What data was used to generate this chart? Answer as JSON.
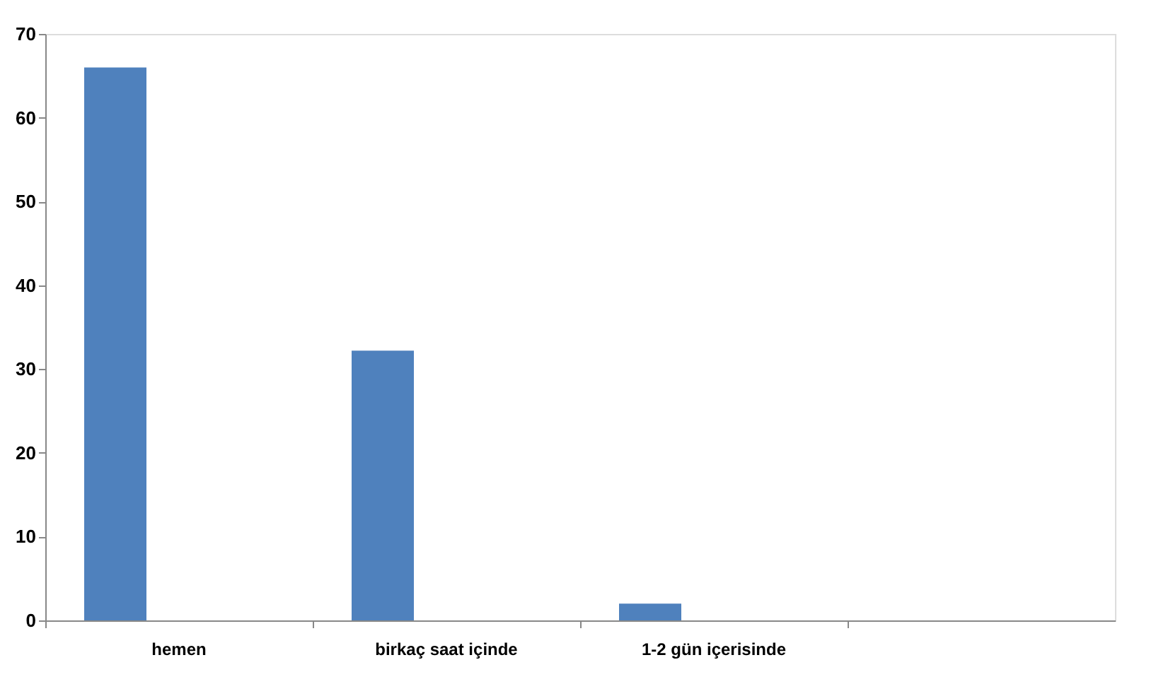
{
  "chart_data": {
    "type": "bar",
    "categories": [
      "hemen",
      "birkaç saat içinde",
      "1-2 gün içerisinde",
      null
    ],
    "values": [
      66,
      32.2,
      2,
      null
    ],
    "color": "#4f81bd",
    "ylim": [
      0,
      70
    ],
    "yticks": [
      0,
      10,
      20,
      30,
      40,
      50,
      60,
      70
    ],
    "grid": false
  }
}
